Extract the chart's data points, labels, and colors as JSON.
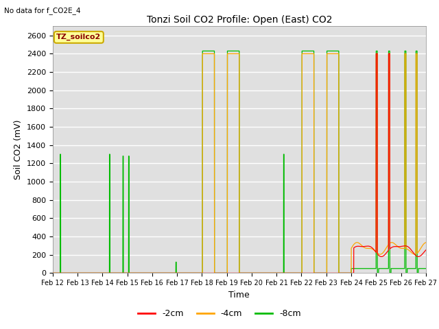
{
  "title": "Tonzi Soil CO2 Profile: Open (East) CO2",
  "subtitle": "No data for f_CO2E_4",
  "ylabel": "Soil CO2 (mV)",
  "xlabel": "Time",
  "ylim": [
    0,
    2700
  ],
  "yticks": [
    0,
    200,
    400,
    600,
    800,
    1000,
    1200,
    1400,
    1600,
    1800,
    2000,
    2200,
    2400,
    2600
  ],
  "legend_label": "TZ_soilco2",
  "series_labels": [
    "-2cm",
    "-4cm",
    "-8cm"
  ],
  "series_colors": [
    "#ff0000",
    "#ffa500",
    "#00bb00"
  ],
  "fig_bg_color": "#ffffff",
  "plot_bg_color": "#e0e0e0",
  "legend_box_color": "#ffff99",
  "legend_box_edge": "#ccaa00",
  "xtick_labels": [
    "Feb 12",
    "Feb 13",
    "Feb 14",
    "Feb 15",
    "Feb 16",
    "Feb 17",
    "Feb 18",
    "Feb 19",
    "Feb 20",
    "Feb 21",
    "Feb 22",
    "Feb 23",
    "Feb 24",
    "Feb 25",
    "Feb 26",
    "Feb 27"
  ]
}
